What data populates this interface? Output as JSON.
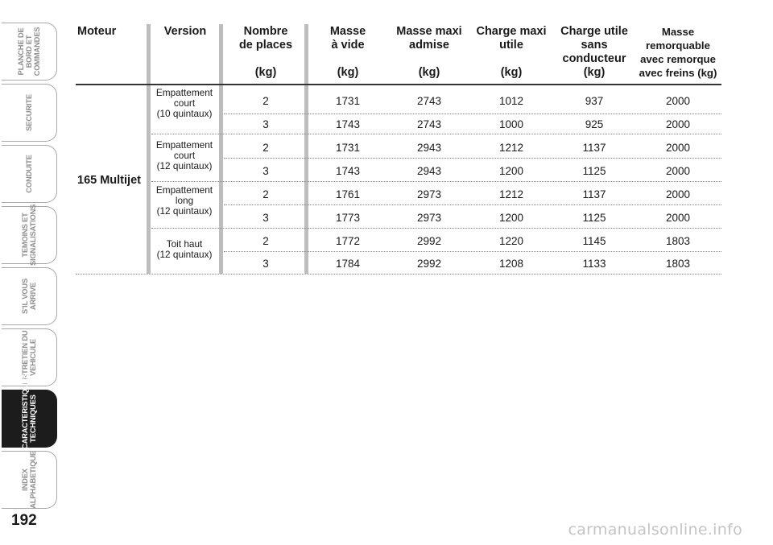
{
  "side_tabs": [
    {
      "label": "PLANCHE DE\nBORD ET\nCOMMANDES",
      "active": false
    },
    {
      "label": "SECURITE",
      "active": false
    },
    {
      "label": "CONDUITE",
      "active": false
    },
    {
      "label": "TEMOINS ET\nSIGNALISATIONS",
      "active": false
    },
    {
      "label": "S'IL VOUS\nARRIVE",
      "active": false
    },
    {
      "label": "ENTRETIEN DU\nVEHICULE",
      "active": false
    },
    {
      "label": "CARACTERISTIQUES\nTECHNIQUES",
      "active": true
    },
    {
      "label": "INDEX\nALPHABETIQUE",
      "active": false
    }
  ],
  "page_number": "192",
  "table": {
    "headers": [
      "Moteur",
      "Version",
      "Nombre\nde places\n\n(kg)",
      "Masse\nà vide\n\n(kg)",
      "Masse maxi\nadmise\n\n(kg)",
      "Charge maxi\nutile\n\n(kg)",
      "Charge utile\nsans\nconducteur\n(kg)",
      "Masse\nremorquable\navec remorque\navec freins (kg)"
    ],
    "engine": "165 Multijet",
    "versions": [
      "Empattement\ncourt\n(10 quintaux)",
      "Empattement\ncourt\n(12 quintaux)",
      "Empattement\nlong\n(12 quintaux)",
      "Toit haut\n(12 quintaux)"
    ],
    "rows": [
      [
        "2",
        "1731",
        "2743",
        "1012",
        "937",
        "2000"
      ],
      [
        "3",
        "1743",
        "2743",
        "1000",
        "925",
        "2000"
      ],
      [
        "2",
        "1731",
        "2943",
        "1212",
        "1137",
        "2000"
      ],
      [
        "3",
        "1743",
        "2943",
        "1200",
        "1125",
        "2000"
      ],
      [
        "2",
        "1761",
        "2973",
        "1212",
        "1137",
        "2000"
      ],
      [
        "3",
        "1773",
        "2973",
        "1200",
        "1125",
        "2000"
      ],
      [
        "2",
        "1772",
        "2992",
        "1220",
        "1145",
        "1803"
      ],
      [
        "3",
        "1784",
        "2992",
        "1208",
        "1133",
        "1803"
      ]
    ]
  },
  "watermark": "carmanualsonline.info"
}
